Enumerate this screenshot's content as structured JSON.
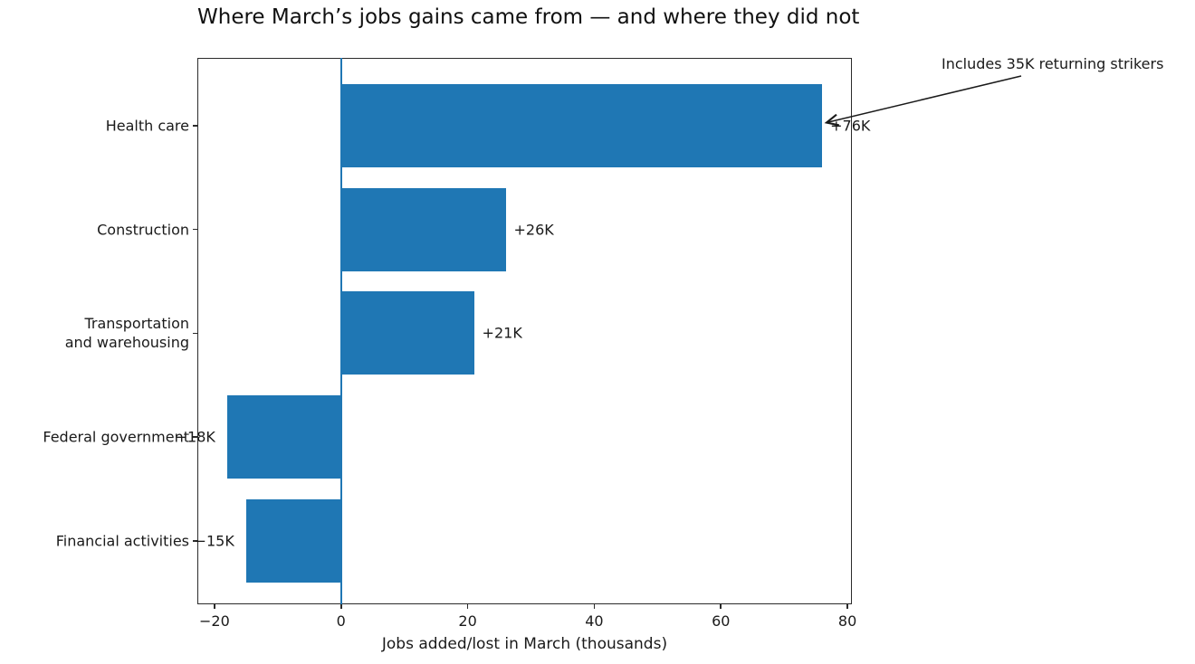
{
  "chart_data": {
    "type": "bar",
    "orientation": "horizontal",
    "title": "Where March’s jobs gains came from — and where they did not",
    "xlabel": "Jobs added/lost in March (thousands)",
    "ylabel": "",
    "categories": [
      "Health care",
      "Construction",
      "Transportation\nand warehousing",
      "Federal government",
      "Financial activities"
    ],
    "values": [
      76,
      26,
      21,
      -18,
      -15
    ],
    "bar_labels": [
      "+76K",
      "+26K",
      "+21K",
      "−18K",
      "−15K"
    ],
    "x_ticks": [
      -20,
      0,
      20,
      40,
      60,
      80
    ],
    "x_tick_labels": [
      "−20",
      "0",
      "20",
      "40",
      "60",
      "80"
    ],
    "xlim": [
      -22.7,
      80.7
    ],
    "grid": false,
    "legend": "none",
    "zero_reference_line": 0,
    "colors": {
      "bar": "#1f77b4",
      "zero_line": "#1f77b4",
      "axis": "#2b2b2b",
      "text": "#1a1a1a"
    },
    "annotation": {
      "text": "Includes 35K returning strikers",
      "target_category": "Health care",
      "target_value": 76
    }
  }
}
